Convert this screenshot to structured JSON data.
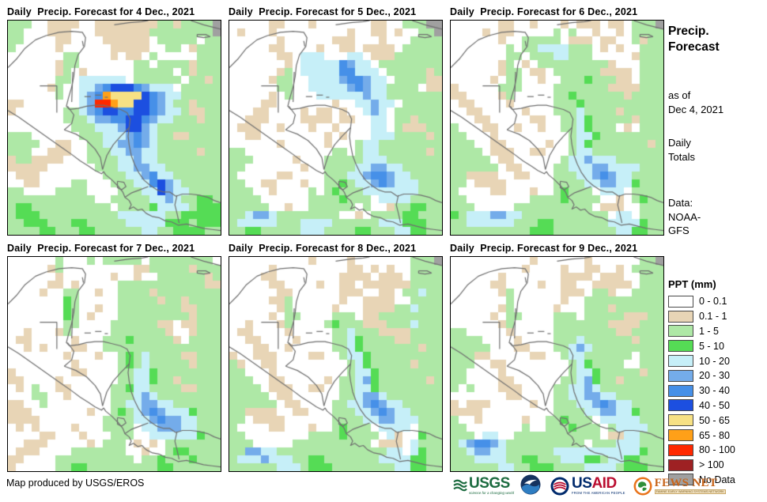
{
  "panels": [
    {
      "title": "Daily  Precip. Forecast for 4 Dec., 2021",
      "grid": [
        "ggg..tttt..ttttttttggtggggN",
        "gg...ttt...tttttttggggggggN",
        "gg....tt....tttttt.ggggg.gg",
        "g.....t......ttttt..gg.tggg",
        ".......gg....t.tt.g.....ggg",
        "......tgg.......gg.ggggtggg",
        "......tg.t......ggggg.gtggg",
        "......gg.cccccc.gggggg.ggtg",
        ".....tg..ccbBDDDBbccc.ggggg",
        "......g..cbBoyyyyDBbccggggg",
        "tt.......cbrroyyDDBbcggtggg",
        "t......ggcbBDDBBDDBbccgttgg",
        ".......gggcbbBBDDBbccgggtgg",
        "........gggcccbDDbcgggggggg",
        "ggg......gggcccbBbcggttgggg",
        "gggg..tt..ggccbbBbcgggggggg",
        "ggg..ttt..gggccbbccgggggtgg",
        "tggtttt...ggggccbccgggggggg",
        "ttttt......gggccbbccggggggg",
        ".ttt........gggccbBccgggggg",
        "..tt....gg...gggccBDbcggggg",
        "gg....gggg....gggccDbccgggg",
        "ggggggggggg..gggggccbcggGGg",
        "gGGgggggggggg.ggggGccccgGGG",
        "gGGGggggggggggccccccggGGGGG",
        "ggGGGgggGGgggggcccccGGGgGGG",
        "ggggGGgggGGggggggccggGGGGgg"
      ]
    },
    {
      "title": "Daily  Precip. Forecast for 5 Dec., 2021",
      "grid": [
        ".....tt...t.......tt..gggNN",
        ".t...t.........t..tt.t..ggN",
        "......t......ttt...t...gggg",
        ".....tt....t..tt.tttt.ggggg",
        "......tt.ccc...cc.tttgggggg",
        ".......t.cccccBbcc.gggggggg",
        "......tg.cccccBBccc.gggggtg",
        ".....tgg..ccccbBBbcc.ggggtt",
        "......gg..cccccbBbccgggg.tt",
        ".....t.g...ccccccbccggggggg",
        "....tt.......t..ccbcc.ggggg",
        "...tt....t.tt.t..cbc.gggggg",
        "..ttt....tttt.tt..cc.ggtggg",
        ".ttt..t...t..t....cc.gtttgg",
        "..tt........t.t...cccggggtg",
        "......t.....t...gccgggggggg",
        "gg...........gg.gccggggggtg",
        "ggg.....t...gggggcccggggggg",
        "gg.......t..ggggccbbccggggg",
        "g.....tt....gggccbBBbccgggg",
        "gg..tt...t..ggGgccbBbcccggg",
        "ggg..t....g.gGgggcccccccggg",
        "gggg......ggggGggg.ccccgggg",
        "ggggg..t..gggggg.g..tggGGgg",
        "ggcbbcgggggggg..t.ggggGGggg",
        "gcccccgggccccggggggcccGGGgg",
        "ggGGgggggcccggggGGgggccGGgg"
      ]
    },
    {
      "title": "Daily  Precip. Forecast for 6 Dec., 2021",
      "grid": [
        "......tt..t...t.ttt.tt.gggN",
        "....t.tt.....g.g..t..t.gggg",
        "......t..ggggg.ttt.tt..gtgg",
        ".......g.ggccccggg.t.t..ggg",
        ".......gg.gggccggg.....tggg",
        "......tg.t.gggggggggt...ggg",
        "......tgg.tt.ggggggtttt.ggg",
        ".....t.gg..t..gggGgggtt.ggg",
        "t.....ggg....gggggggttttggg",
        "tt....tg.....ggGggggggtgggg",
        ".tt....t.....gggGgggggggggg",
        "..tt.....t...gggcggggtggggg",
        "...tt.....tt..ggcGgggggtggg",
        "g...tt..t..t..ggcGggg.t.ggg",
        "gg...t.........gccGgggggggg",
        "ggg..tt.....t..gcGgggggggtg",
        "gggg.ttt..tt...gccggggggggg",
        "ggggg.tt......gccbcccgggggg",
        "gggggg.tt....ggcccbbccccggg",
        "ggtttt..tt...gggccbBbccgggg",
        "gg.tttt......ggggccbbccGggg",
        "g....tt...t..gGggg.ccc.gggg",
        "gg........ggggGgggg..t.gGgg",
        "ggg.....gggggggggg.ttt..ggg",
        "Ggcccbbccggggggggggg.cc.ggg",
        "ggccccccgggGGgggggggccccGgg",
        "ggggggggggGGGggggggggccGGgg"
      ]
    },
    {
      "title": "Daily  Precip. Forecast for 7 Dec., 2021",
      "grid": [
        "......g...g.ggggg.gggggggg.",
        ".....tg.........ttgggggtggg",
        "......t......t..t..ggggggtg",
        ".....tt.t.....gggggggggggtt",
        "....t..gg..t..ggggtgggggggg",
        ".......Gg.....gggggtggtgggg",
        ".......Gg..t..ggggggggttggg",
        ".......Gg.t...gggggggggtggg",
        ".......gg....ggggggtt.ttggg",
        "..t...tg.....gggggggt..tggg",
        ".tt.....t...gggGgggggt.gggg",
        "..t.t...tt..ggggggggggggggg",
        ".......t...t..gGgcggggttggg",
        "........t.....gGgcgggggtggg",
        "t.......tt....ggccGgggggggg",
        "tt....t.......ggccGggtggggg",
        ".t.g..tt.....ggGccggggttggg",
        "...gg..t.....gggcbcgggggggg",
        "tt..g........ggccbbccgggggg",
        "ttt.......t..gGgcbBbcccGggg",
        "tttt........ggggccbBbbccggg",
        ".t.t....t...gggg.ccbbbccggg",
        "....tt...t...ggg..ccccccGgg",
        "..ttt.....t.ggg.t.t.ggggggg",
        ".ttt....ggggggg..t..gGGgggg",
        "tt....gggggggggg.ggGgggGggg",
        "t.....ggGGgggggggggGGgggggg"
      ]
    },
    {
      "title": "Daily  Precip. Forecast for 8 Dec., 2021",
      "grid": [
        "..........t....t.......gggN",
        ".....t.........tt.t.t..gggg",
        "....tt........tttt.ttt.gggg",
        ".....tt....t..tt.ttttttgggg",
        "......tt......ttt..tt.ggcgg",
        ".....ttg......t..tttt..gggg",
        "......tg.....t...ttttggcggg",
        ".....t.gg....ggg.ttgggggggg",
        "..t...tg....gGgggtttgggcggg",
        ".tt....t.....ggcgggttttgggg",
        "..tt....t....ggcGggggttgggg",
        "...tt..t.....ggcGgggggggtgg",
        "t..ttt....tt..gccGggggggggg",
        "gt..tt.........gcGgggggtggg",
        "gg...t.........gccGgggggggg",
        "ggg..tt.....t.ggcbGggggggtg",
        "gggg.ttt..tt..ggccGgggggggg",
        "ggggg.tt......ggcbbcggggggg",
        "gggggg.tt....ggccbBbccggggg",
        "ggtttt..tt...gggccbBbccgggg",
        "gg.tttt......ggggccbbcccggg",
        "g....tt...t..gGggg.cccc.ggg",
        "gg........ggggGgggg.ct..Ggg",
        "ggg.....gggggggggg.ttt.cggg",
        "ggbbccggggggggggggggcc.cGgg",
        "gcccbcccggGGgggggggccccGGgg",
        "ggggggcccgGGGggggggggccGGgg"
      ]
    },
    {
      "title": "Daily  Precip. Forecast for 9 Dec., 2021",
      "grid": [
        "..........t......t......ggN",
        ".........t....t..tt..t.gggg",
        "......t.......tttt.ttt..ggg",
        ".....tt....t..tt..ttttt.ggg",
        "......tg......ttt.ggt..gggg",
        ".......g......t..gggggggggg",
        "......tg.....t...gggtgggggg",
        ".....t.gg....ggg.gggggtttgg",
        "......tg.....gggggggttttggg",
        "gg.....t.....ggggggggttgggg",
        "gggg....t....gggcggggggtggg",
        "ggggg...tt...ggcbcggggggggg",
        "gggtt.....tt..gccgggggg.ggg",
        "ggg..tt........gcGgggg..ggg",
        "gg....t........gccGgggggtgg",
        "gg....tt......ggcbGggtggggg",
        "g.g...ttt....ggccbcgggggggg",
        ".......tt....ggccbbccgggggg",
        "t.ttt.....t..gggccbBbccgggg",
        "tttt.........ggggccbbccGggg",
        "g..t.....t..ggGggg.cccccggg",
        "gg.......g..gggGggg.gccccgg",
        "ggg.cc..ggggggggggg.ttccggg",
        "gcbBBbcgggggggggg.gggcccggg",
        "ggcbbccggggggcccccccccccGgg",
        "gggccccggGGgggcccGGgccGGggg",
        "ggggggccggGGGggggccccgGGGgg"
      ]
    }
  ],
  "sidebar": {
    "title": "Precip.\nForecast",
    "as_of": "as of\nDec 4, 2021",
    "totals": "Daily\nTotals",
    "source": "Data:\nNOAA-\nGFS"
  },
  "legend": {
    "title": "PPT (mm)",
    "items": [
      {
        "label": "0 - 0.1",
        "color": "#FFFFFF"
      },
      {
        "label": "0.1 - 1",
        "color": "#E8D5B6"
      },
      {
        "label": "1 - 5",
        "color": "#AEE8A6"
      },
      {
        "label": "5 - 10",
        "color": "#55DC55"
      },
      {
        "label": "10 - 20",
        "color": "#C6EFF8"
      },
      {
        "label": "20 - 30",
        "color": "#74ACEA"
      },
      {
        "label": "30 - 40",
        "color": "#4690E8"
      },
      {
        "label": "40 - 50",
        "color": "#1C4FE0"
      },
      {
        "label": "50 - 65",
        "color": "#F7E184"
      },
      {
        "label": "65 - 80",
        "color": "#FFA018"
      },
      {
        "label": "80 - 100",
        "color": "#FF2800"
      },
      {
        "label": "> 100",
        "color": "#9E2123"
      },
      {
        "label": "No Data",
        "color": "#A0A0A0"
      }
    ]
  },
  "footer": {
    "credit": "Map produced by USGS/EROS",
    "usgs": {
      "name": "USGS",
      "tagline": "science for a changing world"
    },
    "usaid": {
      "us": "US",
      "aid": "AID",
      "tagline": "FROM THE AMERICAN PEOPLE"
    },
    "fews": {
      "name": "FEWS NET",
      "tagline": "FAMINE EARLY WARNING SYSTEMS NETWORK"
    }
  },
  "map_colors": {
    ".": "#FFFFFF",
    "t": "#E8D5B6",
    "g": "#AEE8A6",
    "G": "#55DC55",
    "c": "#C6EFF8",
    "b": "#74ACEA",
    "B": "#4690E8",
    "D": "#1C4FE0",
    "y": "#F7E184",
    "o": "#FFA018",
    "r": "#FF2800",
    "m": "#9E2123",
    "N": "#A0A0A0"
  },
  "map_outline": {
    "stroke": "#6F6F6F",
    "paths": [
      [
        [
          0,
          22
        ],
        [
          4,
          18
        ],
        [
          8,
          13
        ],
        [
          13,
          9
        ],
        [
          18,
          7
        ],
        [
          24,
          5.5
        ],
        [
          30,
          5
        ],
        [
          35,
          5.5
        ],
        [
          36.5,
          8
        ],
        [
          36,
          12
        ],
        [
          33,
          16
        ],
        [
          31.5,
          21
        ],
        [
          31,
          26
        ],
        [
          30,
          31
        ],
        [
          28.5,
          36
        ],
        [
          27.5,
          40
        ],
        [
          29,
          41.5
        ],
        [
          33,
          41
        ],
        [
          37,
          40
        ],
        [
          41,
          39.5
        ],
        [
          45,
          39.5
        ],
        [
          49,
          40.5
        ],
        [
          53,
          41.5
        ],
        [
          56,
          43
        ],
        [
          57.5,
          46
        ],
        [
          57,
          50
        ],
        [
          56.5,
          54
        ],
        [
          57,
          58
        ],
        [
          58,
          63
        ],
        [
          59.5,
          67
        ],
        [
          61.5,
          71
        ],
        [
          64,
          74.5
        ],
        [
          67,
          77
        ],
        [
          70,
          79
        ],
        [
          73,
          80
        ],
        [
          76,
          80
        ],
        [
          79,
          82
        ],
        [
          82,
          81
        ],
        [
          86,
          81
        ],
        [
          90,
          81.5
        ],
        [
          94,
          82.5
        ],
        [
          97,
          84
        ],
        [
          100,
          85
        ]
      ],
      [
        [
          0,
          42
        ],
        [
          5,
          45
        ],
        [
          10,
          48.5
        ],
        [
          15,
          52
        ],
        [
          20,
          55.5
        ],
        [
          25,
          59
        ],
        [
          30,
          62.5
        ],
        [
          34,
          65.5
        ],
        [
          38,
          68
        ],
        [
          41,
          70
        ],
        [
          44,
          71.5
        ],
        [
          45,
          70.5
        ],
        [
          46,
          72
        ],
        [
          49,
          74.5
        ],
        [
          52,
          77.5
        ],
        [
          54,
          80
        ],
        [
          55,
          82.5
        ],
        [
          57,
          84
        ],
        [
          58,
          86
        ],
        [
          57,
          88
        ],
        [
          59,
          87
        ],
        [
          61,
          88.5
        ],
        [
          63,
          88
        ],
        [
          65,
          90
        ],
        [
          68,
          91.5
        ],
        [
          71,
          92
        ],
        [
          74,
          93.5
        ],
        [
          77,
          94
        ],
        [
          80,
          95.5
        ],
        [
          84,
          95
        ],
        [
          88,
          96
        ],
        [
          92,
          97
        ],
        [
          96,
          97.5
        ],
        [
          100,
          98
        ]
      ],
      [
        [
          15,
          30.5
        ],
        [
          23,
          30.5
        ],
        [
          23,
          43
        ]
      ],
      [
        [
          30.5,
          24
        ],
        [
          30,
          38
        ]
      ],
      [
        [
          28,
          40
        ],
        [
          31,
          44
        ],
        [
          30,
          48
        ],
        [
          26.5,
          51
        ]
      ],
      [
        [
          26.5,
          51
        ],
        [
          32,
          53
        ],
        [
          37,
          56
        ],
        [
          41,
          60
        ],
        [
          43.5,
          64
        ],
        [
          44.5,
          69.5
        ]
      ],
      [
        [
          44.5,
          69.5
        ],
        [
          46.5,
          63
        ],
        [
          49.5,
          58
        ],
        [
          53,
          54
        ],
        [
          57,
          50
        ]
      ],
      [
        [
          55,
          82.5
        ],
        [
          58,
          80.5
        ],
        [
          62,
          79
        ],
        [
          66,
          77.5
        ]
      ],
      [
        [
          79.5,
          81.5
        ],
        [
          78.5,
          86
        ],
        [
          79.5,
          90
        ],
        [
          80.5,
          94.5
        ]
      ],
      [
        [
          50,
          2
        ],
        [
          57,
          1
        ],
        [
          63,
          0.5
        ],
        [
          66,
          0
        ]
      ],
      [
        [
          86,
          0
        ],
        [
          92,
          2
        ],
        [
          96,
          3
        ],
        [
          100,
          4
        ]
      ],
      [
        [
          89,
          6.5
        ],
        [
          93,
          6.5
        ],
        [
          95,
          7.5
        ],
        [
          92,
          8
        ],
        [
          89,
          7.5
        ],
        [
          89,
          6.5
        ]
      ],
      [
        [
          36,
          35.5
        ],
        [
          39,
          35.5
        ]
      ],
      [
        [
          41,
          34.8
        ],
        [
          44,
          34.8
        ]
      ],
      [
        [
          45.5,
          35.8
        ],
        [
          47,
          35.8
        ]
      ],
      [
        [
          35,
          9.5
        ],
        [
          35.5,
          12
        ]
      ],
      [
        [
          51.5,
          75
        ],
        [
          54.5,
          75.5
        ],
        [
          55.5,
          77.5
        ],
        [
          53.5,
          79
        ],
        [
          51.5,
          78
        ],
        [
          51.5,
          75
        ]
      ]
    ]
  }
}
